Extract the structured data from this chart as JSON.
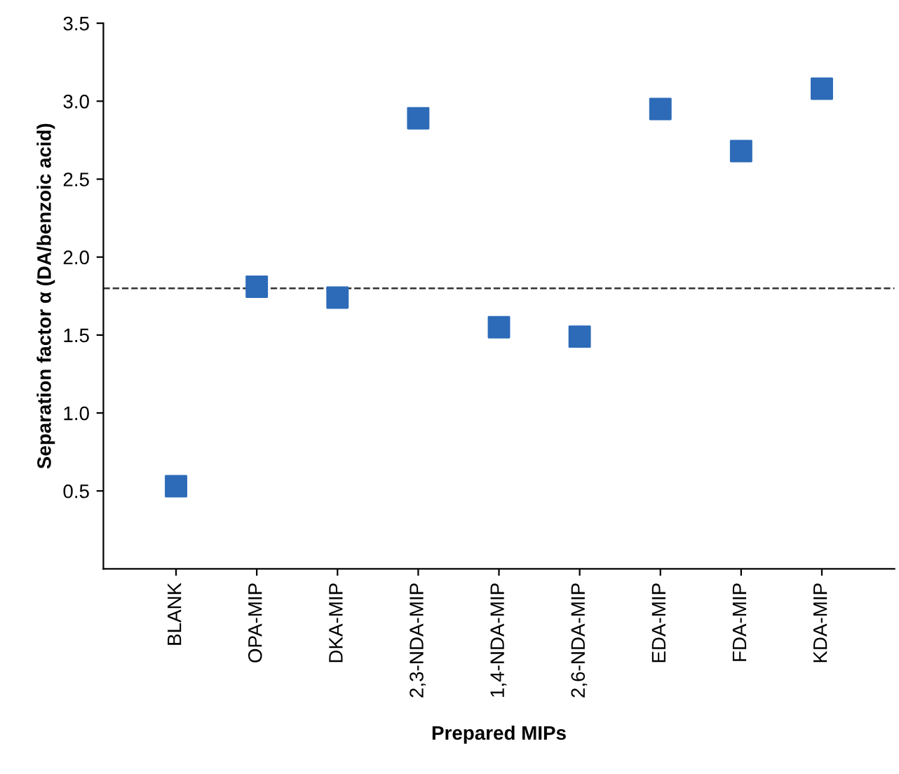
{
  "chart_data": {
    "type": "scatter",
    "xlabel": "Prepared MIPs",
    "ylabel": "Separation factor α (DA/benzoic acid)",
    "categories": [
      "BLANK",
      "OPA-MIP",
      "DKA-MIP",
      "2,3-NDA-MIP",
      "1,4-NDA-MIP",
      "2,6-NDA-MIP",
      "EDA-MIP",
      "FDA-MIP",
      "KDA-MIP"
    ],
    "series": [
      {
        "color": "#2d6bb8",
        "values": [
          0.53,
          1.81,
          1.74,
          2.89,
          1.55,
          1.49,
          2.95,
          2.68,
          3.08
        ]
      }
    ],
    "ylim": [
      0,
      3.5
    ],
    "yticks": [
      0.5,
      {
        "value": 1,
        "label": "1.0"
      },
      1.5,
      {
        "value": 2,
        "label": "2.0"
      },
      2.5,
      {
        "value": 3,
        "label": "3.0"
      },
      3.5
    ],
    "ref_lines": [
      {
        "axis": "y",
        "value": 1.8,
        "color": "#333333",
        "line_style": "dashed"
      }
    ],
    "marker": "square",
    "grid": false,
    "legend": false
  }
}
